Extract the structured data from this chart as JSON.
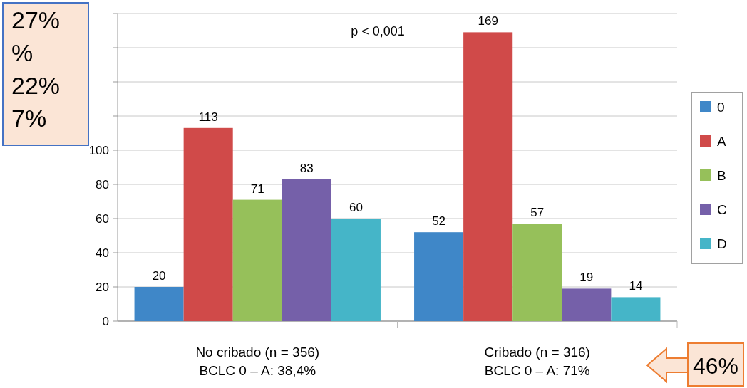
{
  "chart_data": {
    "type": "bar",
    "categories": [
      "No cribado (n = 356)\nBCLC 0 – A: 38,4%",
      "Cribado (n = 316)\nBCLC 0 – A: 71%"
    ],
    "series": [
      {
        "name": "0",
        "color": "#3f87c8",
        "values": [
          20,
          52
        ]
      },
      {
        "name": "A",
        "color": "#d04a49",
        "values": [
          113,
          169
        ]
      },
      {
        "name": "B",
        "color": "#96c05a",
        "values": [
          71,
          57
        ]
      },
      {
        "name": "C",
        "color": "#7560a9",
        "values": [
          83,
          19
        ]
      },
      {
        "name": "D",
        "color": "#45b5c8",
        "values": [
          60,
          14
        ]
      }
    ],
    "ylim": [
      0,
      180
    ],
    "yticks": [
      0,
      20,
      40,
      60,
      80,
      100,
      {
        "value": 120,
        "label": null
      },
      {
        "value": 140,
        "label": null
      },
      {
        "value": 160,
        "label": null
      },
      {
        "value": 180,
        "label": null
      }
    ],
    "grid": "y",
    "legend": "right",
    "data_labels": true,
    "annotations": [
      "p < 0,001",
      "27%",
      "%",
      "22%",
      "7%",
      "46%"
    ]
  }
}
